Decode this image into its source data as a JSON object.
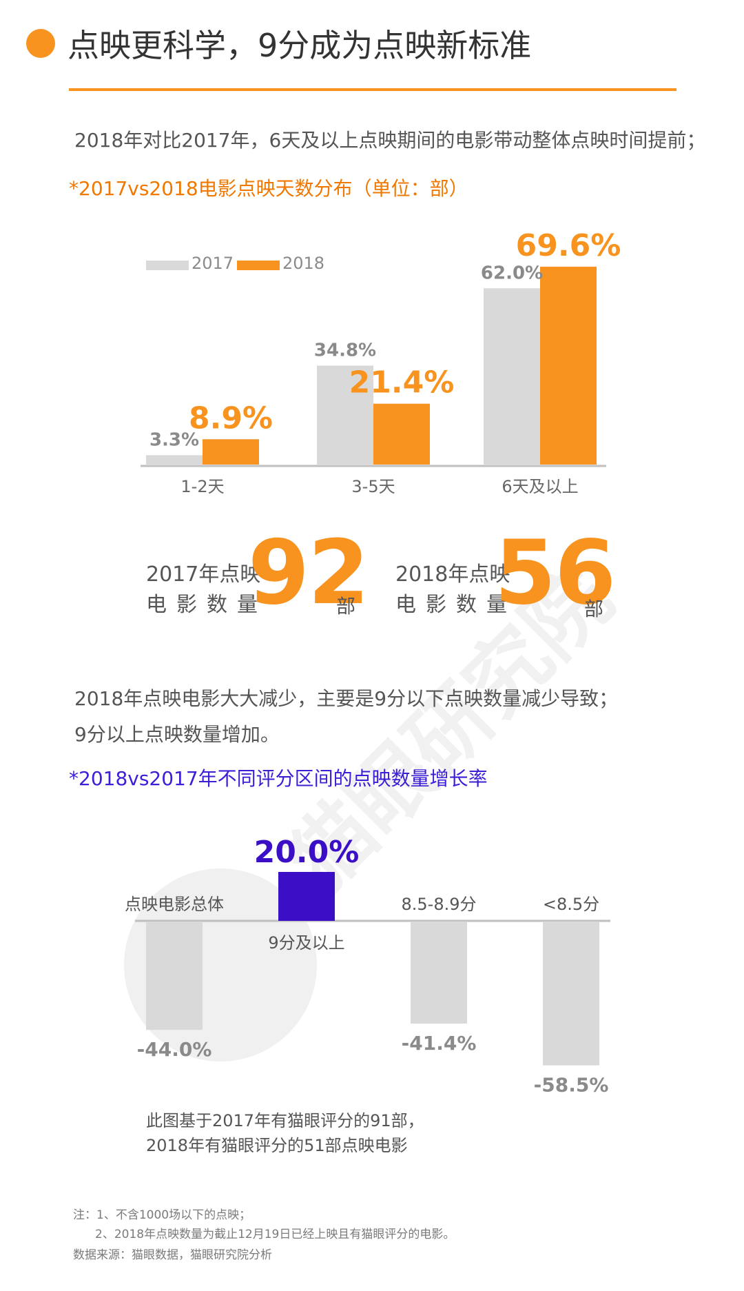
{
  "header": {
    "title": "点映更科学，9分成为点映新标准"
  },
  "colors": {
    "accent_orange": "#f7931e",
    "gray_2017": "#d9d9d9",
    "purple": "#3a0fc6"
  },
  "section1": {
    "paragraph": "2018年对比2017年，6天及以上点映期间的电影带动整体点映时间提前；",
    "subtitle": "*2017vs2018电影点映天数分布（单位：部）"
  },
  "chart_data": [
    {
      "type": "bar",
      "categories": [
        "1-2天",
        "3-5天",
        "6天及以上"
      ],
      "series": [
        {
          "name": "2017",
          "values": [
            3.3,
            34.8,
            62.0
          ],
          "labels": [
            "3.3%",
            "34.8%",
            "62.0%"
          ],
          "color": "#d9d9d9"
        },
        {
          "name": "2018",
          "values": [
            8.9,
            21.4,
            69.6
          ],
          "labels": [
            "8.9%",
            "21.4%",
            "69.6%"
          ],
          "color": "#f7931e"
        }
      ],
      "legend_position": "top-left",
      "ylim": [
        0,
        80
      ],
      "grid": false
    },
    {
      "type": "bar",
      "categories": [
        "点映电影总体",
        "9分及以上",
        "8.5-8.9分",
        "<8.5分"
      ],
      "values": [
        -44.0,
        20.0,
        -41.4,
        -58.5
      ],
      "labels": [
        "-44.0%",
        "20.0%",
        "-41.4%",
        "-58.5%"
      ],
      "colors": [
        "#d9d9d9",
        "#3a0fc6",
        "#d9d9d9",
        "#d9d9d9"
      ],
      "grid": false
    }
  ],
  "stats": {
    "y2017_label_line1": "2017年点映",
    "y2017_label_line2": "电影数量",
    "y2017_value": "92",
    "y2018_label_line1": "2018年点映",
    "y2018_label_line2": "电影数量",
    "y2018_value": "56",
    "unit": "部"
  },
  "section2": {
    "paragraph_line1": "2018年点映电影大大减少，主要是9分以下点映数量减少导致；",
    "paragraph_line2": "9分以上点映数量增加。",
    "subtitle": "*2018vs2017年不同评分区间的点映数量增长率",
    "chart_note_line1": "此图基于2017年有猫眼评分的91部，",
    "chart_note_line2": "2018年有猫眼评分的51部点映电影"
  },
  "footnotes": {
    "note1": "注：1、不含1000场以下的点映；",
    "note2": "2、2018年点映数量为截止12月19日已经上映且有猫眼评分的电影。",
    "source": "数据来源：猫眼数据，猫眼研究院分析"
  },
  "watermark": {
    "text": "猫眼研究院"
  }
}
